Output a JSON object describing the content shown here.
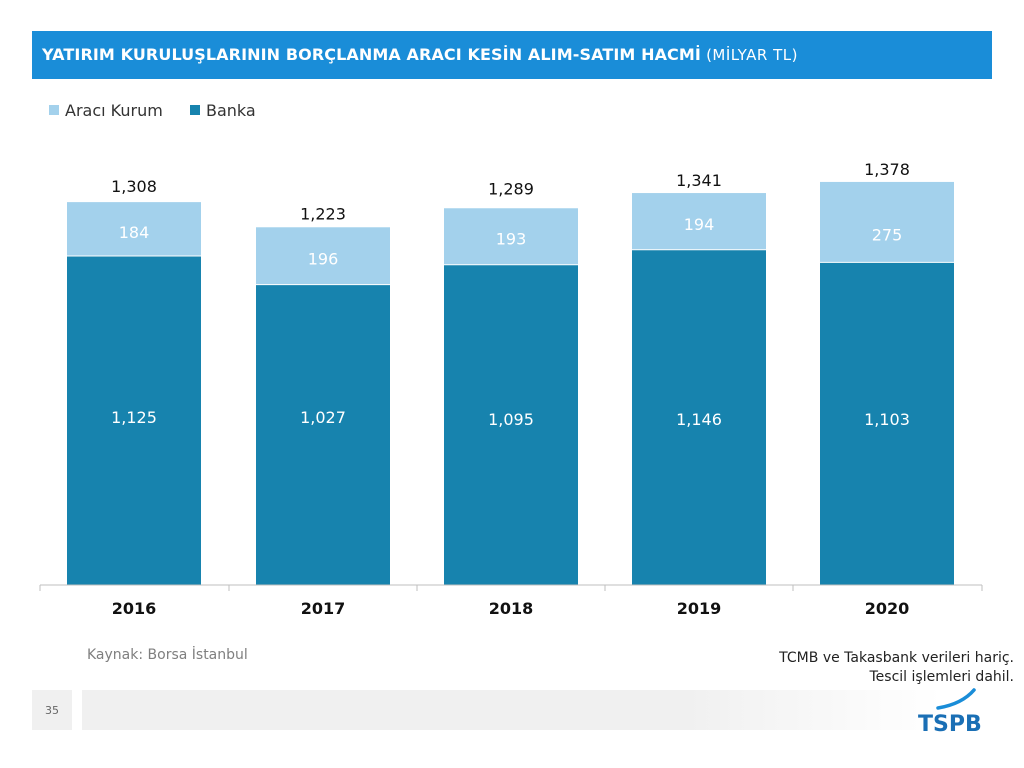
{
  "header": {
    "title_main": "YATIRIM KURULUŞLARININ BORÇLANMA ARACI KESİN ALIM-SATIM HACMİ",
    "title_unit": "(MİLYAR TL)"
  },
  "colors": {
    "title_bg": "#1a8dd8",
    "araci_kurum": "#a3d1ec",
    "banka": "#1783ae"
  },
  "chart_data": {
    "type": "bar",
    "stacked": true,
    "title": "YATIRIM KURULUŞLARININ BORÇLANMA ARACI KESİN ALIM-SATIM HACMİ (MİLYAR TL)",
    "categories": [
      "2016",
      "2017",
      "2018",
      "2019",
      "2020"
    ],
    "series": [
      {
        "name": "Banka",
        "values": [
          1125,
          1027,
          1095,
          1146,
          1103
        ],
        "labels": [
          "1,125",
          "1,027",
          "1,095",
          "1,146",
          "1,103"
        ]
      },
      {
        "name": "Aracı Kurum",
        "values": [
          184,
          196,
          193,
          194,
          275
        ],
        "labels": [
          "184",
          "196",
          "193",
          "194",
          "275"
        ]
      }
    ],
    "totals": [
      "1,308",
      "1,223",
      "1,289",
      "1,341",
      "1,378"
    ],
    "legend": [
      "Aracı Kurum",
      "Banka"
    ],
    "legend_position": "top-left",
    "xlabel": "",
    "ylabel": "",
    "grid": false
  },
  "footer": {
    "source": "Kaynak: Borsa İstanbul",
    "note_line1": "TCMB ve Takasbank verileri hariç.",
    "note_line2": "Tescil işlemleri dahil.",
    "page_number": "35",
    "logo_text": "TSPB"
  }
}
